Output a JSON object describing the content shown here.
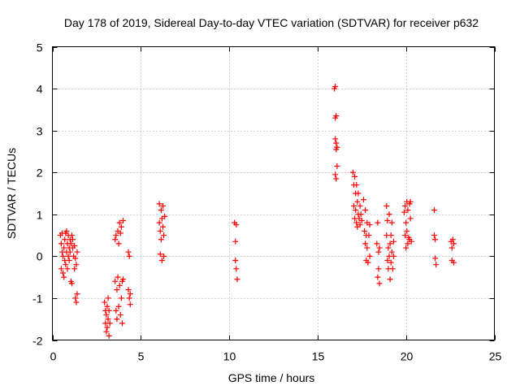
{
  "chart_data": {
    "type": "scatter",
    "title": "Day 178 of 2019, Sidereal Day-to-day VTEC variation (SDTVAR) for receiver p632",
    "xlabel": "GPS time / hours",
    "ylabel": "SDTVAR / TECUs",
    "xlim": [
      0,
      25
    ],
    "ylim": [
      -2,
      5
    ],
    "xticks": [
      0,
      5,
      10,
      15,
      20,
      25
    ],
    "yticks": [
      -2,
      -1,
      0,
      1,
      2,
      3,
      4,
      5
    ],
    "xtick_labels": [
      "0",
      "5",
      "10",
      "15",
      "20",
      "25"
    ],
    "ytick_labels": [
      "-2",
      "-1",
      "0",
      "1",
      "2",
      "3",
      "4",
      "5"
    ],
    "grid": true,
    "marker": "+",
    "color": "#ff0000",
    "series": [
      {
        "name": "SDTVAR",
        "points": [
          [
            0.45,
            0.5
          ],
          [
            0.5,
            0.3
          ],
          [
            0.5,
            -0.3
          ],
          [
            0.55,
            0.1
          ],
          [
            0.55,
            0.55
          ],
          [
            0.6,
            -0.4
          ],
          [
            0.6,
            0.0
          ],
          [
            0.65,
            0.2
          ],
          [
            0.65,
            -0.5
          ],
          [
            0.7,
            0.4
          ],
          [
            0.7,
            -0.1
          ],
          [
            0.75,
            0.55
          ],
          [
            0.75,
            -0.2
          ],
          [
            0.8,
            0.1
          ],
          [
            0.8,
            0.6
          ],
          [
            0.85,
            -0.3
          ],
          [
            0.85,
            0.3
          ],
          [
            0.9,
            0.5
          ],
          [
            0.9,
            0.0
          ],
          [
            0.95,
            0.2
          ],
          [
            0.95,
            -0.1
          ],
          [
            1.0,
            0.4
          ],
          [
            1.0,
            0.1
          ],
          [
            1.05,
            -0.6
          ],
          [
            1.05,
            0.3
          ],
          [
            1.1,
            0.5
          ],
          [
            1.1,
            -0.65
          ],
          [
            1.15,
            0.2
          ],
          [
            1.15,
            0.4
          ],
          [
            1.2,
            0.0
          ],
          [
            1.25,
            -0.3
          ],
          [
            1.25,
            0.25
          ],
          [
            1.3,
            -0.05
          ],
          [
            1.3,
            -1.0
          ],
          [
            1.35,
            -0.2
          ],
          [
            1.35,
            -1.1
          ],
          [
            1.4,
            -0.9
          ],
          [
            1.4,
            0.1
          ],
          [
            2.95,
            -1.1
          ],
          [
            3.0,
            -1.3
          ],
          [
            3.0,
            -1.6
          ],
          [
            3.05,
            -1.8
          ],
          [
            3.05,
            -1.4
          ],
          [
            3.1,
            -1.2
          ],
          [
            3.1,
            -1.7
          ],
          [
            3.15,
            -1.0
          ],
          [
            3.15,
            -1.5
          ],
          [
            3.2,
            -1.3
          ],
          [
            3.2,
            -1.9
          ],
          [
            3.25,
            -1.6
          ],
          [
            3.55,
            0.4
          ],
          [
            3.55,
            -0.6
          ],
          [
            3.6,
            -1.3
          ],
          [
            3.6,
            0.5
          ],
          [
            3.65,
            -0.8
          ],
          [
            3.65,
            -1.5
          ],
          [
            3.7,
            0.6
          ],
          [
            3.7,
            -0.5
          ],
          [
            3.75,
            -1.2
          ],
          [
            3.75,
            0.3
          ],
          [
            3.8,
            0.8
          ],
          [
            3.8,
            -0.7
          ],
          [
            3.85,
            -1.4
          ],
          [
            3.85,
            0.55
          ],
          [
            3.9,
            -1.0
          ],
          [
            3.9,
            0.7
          ],
          [
            3.95,
            -0.6
          ],
          [
            3.95,
            -1.6
          ],
          [
            4.0,
            0.85
          ],
          [
            4.0,
            -0.55
          ],
          [
            4.3,
            -0.8
          ],
          [
            4.3,
            0.1
          ],
          [
            4.35,
            -1.0
          ],
          [
            4.35,
            0.0
          ],
          [
            4.4,
            -1.15
          ],
          [
            4.4,
            -0.9
          ],
          [
            6.05,
            1.25
          ],
          [
            6.05,
            0.8
          ],
          [
            6.1,
            0.6
          ],
          [
            6.1,
            0.05
          ],
          [
            6.15,
            1.1
          ],
          [
            6.15,
            0.4
          ],
          [
            6.2,
            0.9
          ],
          [
            6.2,
            -0.1
          ],
          [
            6.25,
            0.7
          ],
          [
            6.25,
            1.2
          ],
          [
            6.3,
            0.5
          ],
          [
            6.3,
            0.0
          ],
          [
            6.35,
            0.95
          ],
          [
            10.3,
            0.8
          ],
          [
            10.35,
            0.35
          ],
          [
            10.35,
            -0.1
          ],
          [
            10.4,
            -0.3
          ],
          [
            10.4,
            0.75
          ],
          [
            10.45,
            -0.55
          ],
          [
            15.95,
            4.0
          ],
          [
            16.0,
            4.05
          ],
          [
            16.0,
            3.3
          ],
          [
            16.05,
            3.35
          ],
          [
            16.0,
            2.8
          ],
          [
            16.05,
            2.7
          ],
          [
            16.05,
            2.55
          ],
          [
            16.1,
            2.6
          ],
          [
            16.1,
            2.15
          ],
          [
            16.0,
            1.95
          ],
          [
            16.05,
            1.85
          ],
          [
            17.0,
            2.0
          ],
          [
            17.05,
            1.7
          ],
          [
            17.05,
            1.2
          ],
          [
            17.1,
            1.9
          ],
          [
            17.1,
            0.9
          ],
          [
            17.15,
            1.5
          ],
          [
            17.15,
            1.1
          ],
          [
            17.2,
            0.8
          ],
          [
            17.2,
            1.7
          ],
          [
            17.25,
            1.3
          ],
          [
            17.25,
            0.7
          ],
          [
            17.3,
            1.0
          ],
          [
            17.3,
            1.5
          ],
          [
            17.35,
            0.9
          ],
          [
            17.4,
            1.2
          ],
          [
            17.4,
            0.75
          ],
          [
            17.45,
            1.0
          ],
          [
            17.5,
            0.85
          ],
          [
            17.6,
            1.35
          ],
          [
            17.65,
            0.6
          ],
          [
            17.7,
            0.3
          ],
          [
            17.7,
            1.1
          ],
          [
            17.75,
            0.5
          ],
          [
            17.75,
            -0.1
          ],
          [
            17.8,
            0.2
          ],
          [
            17.8,
            0.8
          ],
          [
            17.85,
            -0.15
          ],
          [
            17.9,
            0.5
          ],
          [
            17.95,
            0.0
          ],
          [
            17.95,
            0.75
          ],
          [
            18.35,
            0.3
          ],
          [
            18.4,
            -0.5
          ],
          [
            18.4,
            0.8
          ],
          [
            18.45,
            -0.3
          ],
          [
            18.45,
            0.1
          ],
          [
            18.5,
            -0.65
          ],
          [
            18.5,
            0.2
          ],
          [
            18.9,
            1.2
          ],
          [
            18.9,
            0.5
          ],
          [
            18.95,
            -0.1
          ],
          [
            18.95,
            0.85
          ],
          [
            19.0,
            0.2
          ],
          [
            19.0,
            -0.3
          ],
          [
            19.05,
            1.0
          ],
          [
            19.05,
            0.0
          ],
          [
            19.1,
            -0.55
          ],
          [
            19.1,
            0.3
          ],
          [
            19.15,
            0.5
          ],
          [
            19.15,
            -0.15
          ],
          [
            19.2,
            0.1
          ],
          [
            19.2,
            0.8
          ],
          [
            19.25,
            -0.3
          ],
          [
            19.3,
            0.35
          ],
          [
            19.3,
            0.0
          ],
          [
            19.9,
            1.05
          ],
          [
            19.95,
            0.5
          ],
          [
            19.95,
            1.2
          ],
          [
            20.0,
            0.8
          ],
          [
            20.0,
            0.2
          ],
          [
            20.05,
            1.3
          ],
          [
            20.05,
            0.6
          ],
          [
            20.1,
            0.3
          ],
          [
            20.1,
            1.1
          ],
          [
            20.15,
            0.45
          ],
          [
            20.2,
            1.25
          ],
          [
            20.2,
            0.4
          ],
          [
            20.25,
            0.9
          ],
          [
            20.25,
            1.3
          ],
          [
            20.3,
            0.35
          ],
          [
            21.6,
            1.1
          ],
          [
            21.6,
            0.5
          ],
          [
            21.65,
            0.4
          ],
          [
            21.65,
            -0.05
          ],
          [
            21.7,
            -0.2
          ],
          [
            22.55,
            0.35
          ],
          [
            22.6,
            0.2
          ],
          [
            22.6,
            -0.1
          ],
          [
            22.65,
            0.4
          ],
          [
            22.7,
            -0.15
          ],
          [
            22.7,
            0.3
          ]
        ]
      }
    ]
  }
}
